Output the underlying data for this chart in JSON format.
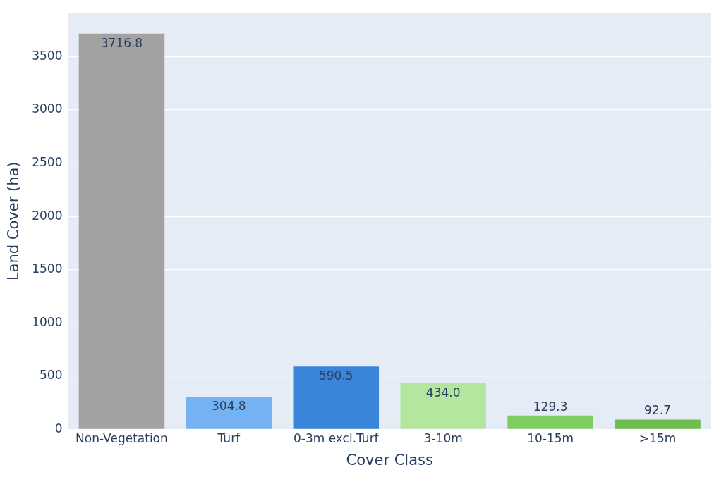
{
  "chart_data": {
    "type": "bar",
    "xlabel": "Cover Class",
    "ylabel": "Land Cover (ha)",
    "categories": [
      "Non-Vegetation",
      "Turf",
      "0-3m excl.Turf",
      "3-10m",
      "10-15m",
      ">15m"
    ],
    "values": [
      3716.8,
      304.8,
      590.5,
      434.0,
      129.3,
      92.7
    ],
    "colors": [
      "#a2a2a2",
      "#74b2f2",
      "#3a84da",
      "#b4e6a0",
      "#80cc60",
      "#6cbf4c"
    ],
    "value_labels": [
      "3716.8",
      "304.8",
      "590.5",
      "434.0",
      "129.3",
      "92.7"
    ],
    "ylim": [
      0,
      3912.4
    ],
    "yticks": [
      0,
      500,
      1000,
      1500,
      2000,
      2500,
      3000,
      3500
    ],
    "grid": "y",
    "legend": false
  }
}
